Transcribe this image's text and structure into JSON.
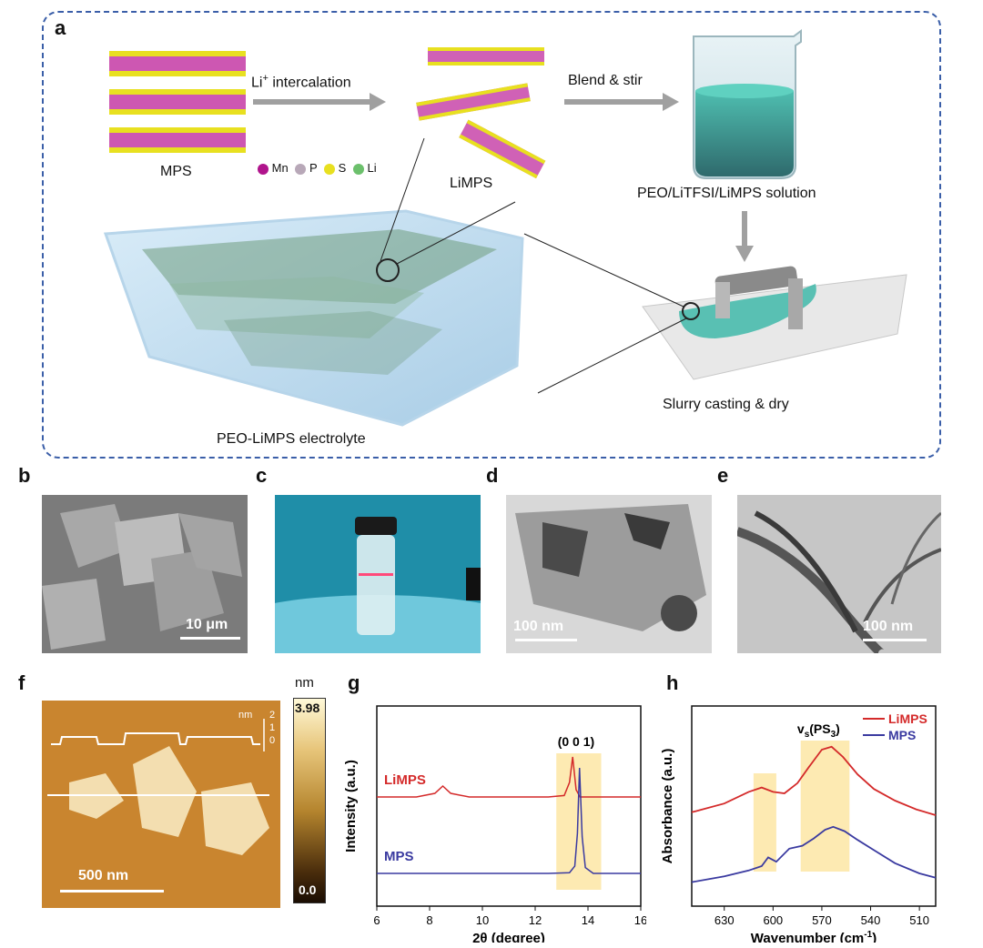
{
  "panels": {
    "a": {
      "label": "a",
      "mps": "MPS",
      "limps": "LiMPS",
      "intercalation": "Li",
      "intercalation_sup": "+",
      "intercalation_rest": " intercalation",
      "blend": "Blend & stir",
      "solution": "PEO/LiTFSI/LiMPS solution",
      "casting": "Slurry casting & dry",
      "electrolyte": "PEO-LiMPS electrolyte",
      "legend": [
        {
          "symbol": "Mn",
          "color": "#b0148c"
        },
        {
          "symbol": "P",
          "color": "#b8a8b8"
        },
        {
          "symbol": "S",
          "color": "#e8e020"
        },
        {
          "symbol": "Li",
          "color": "#6cc06c"
        }
      ]
    },
    "b": {
      "label": "b",
      "scale": "10 μm"
    },
    "c": {
      "label": "c"
    },
    "d": {
      "label": "d",
      "scale": "100 nm"
    },
    "e": {
      "label": "e",
      "scale": "100 nm"
    },
    "f": {
      "label": "f",
      "scale": "500 nm",
      "colorbar_unit": "nm",
      "colorbar_max": "3.98",
      "colorbar_min": "0.0",
      "profile_unit": "nm",
      "profile_ticks": [
        "2",
        "1",
        "0"
      ]
    },
    "g": {
      "label": "g",
      "peak_label": "(0 0 1)"
    },
    "h": {
      "label": "h",
      "peak_label_main": "v",
      "peak_label_sub": "s",
      "peak_label_rest": "(PS",
      "peak_label_sub2": "3",
      "peak_label_end": ")"
    }
  },
  "chart_data": [
    {
      "type": "line",
      "panel": "g",
      "xlabel": "2θ (degree)",
      "ylabel": "Intensity (a.u.)",
      "xlim": [
        6,
        16
      ],
      "x_ticks": [
        6,
        8,
        10,
        12,
        14,
        16
      ],
      "highlight_range": [
        12.8,
        14.5
      ],
      "series": [
        {
          "name": "LiMPS",
          "color": "#d42a2a",
          "offset": 1,
          "x": [
            6,
            7.5,
            8.2,
            8.5,
            8.8,
            9.5,
            12.5,
            13.1,
            13.3,
            13.42,
            13.55,
            13.7,
            14.2,
            16
          ],
          "y": [
            0,
            0,
            0.05,
            0.15,
            0.05,
            0,
            0,
            0.02,
            0.2,
            0.55,
            0.1,
            0,
            0,
            0
          ]
        },
        {
          "name": "MPS",
          "color": "#3a3aa0",
          "offset": 0,
          "x": [
            6,
            12.5,
            13.3,
            13.5,
            13.6,
            13.68,
            13.78,
            13.9,
            14.2,
            16
          ],
          "y": [
            0,
            0,
            0.01,
            0.1,
            0.55,
            1.45,
            0.5,
            0.08,
            0,
            0
          ]
        }
      ]
    },
    {
      "type": "line",
      "panel": "h",
      "xlabel": "Wavenumber (cm",
      "xlabel_sup": "-1",
      "xlabel_end": ")",
      "ylabel": "Absorbance (a.u.)",
      "xlim": [
        650,
        500
      ],
      "x_ticks": [
        630,
        600,
        570,
        540,
        510
      ],
      "highlight_ranges": [
        [
          612,
          598
        ],
        [
          583,
          553
        ]
      ],
      "series": [
        {
          "name": "LiMPS",
          "color": "#d42a2a",
          "x": [
            650,
            630,
            615,
            607,
            600,
            593,
            585,
            578,
            570,
            564,
            557,
            548,
            538,
            525,
            512,
            500
          ],
          "y": [
            0.52,
            0.58,
            0.66,
            0.69,
            0.66,
            0.65,
            0.72,
            0.83,
            0.95,
            0.97,
            0.9,
            0.78,
            0.68,
            0.6,
            0.54,
            0.5
          ]
        },
        {
          "name": "MPS",
          "color": "#3a3aa0",
          "x": [
            650,
            630,
            615,
            607,
            603,
            598,
            590,
            582,
            575,
            568,
            563,
            556,
            548,
            538,
            525,
            510,
            500
          ],
          "y": [
            0.04,
            0.08,
            0.12,
            0.15,
            0.21,
            0.18,
            0.27,
            0.29,
            0.34,
            0.4,
            0.42,
            0.39,
            0.33,
            0.26,
            0.17,
            0.1,
            0.07
          ]
        }
      ]
    }
  ]
}
